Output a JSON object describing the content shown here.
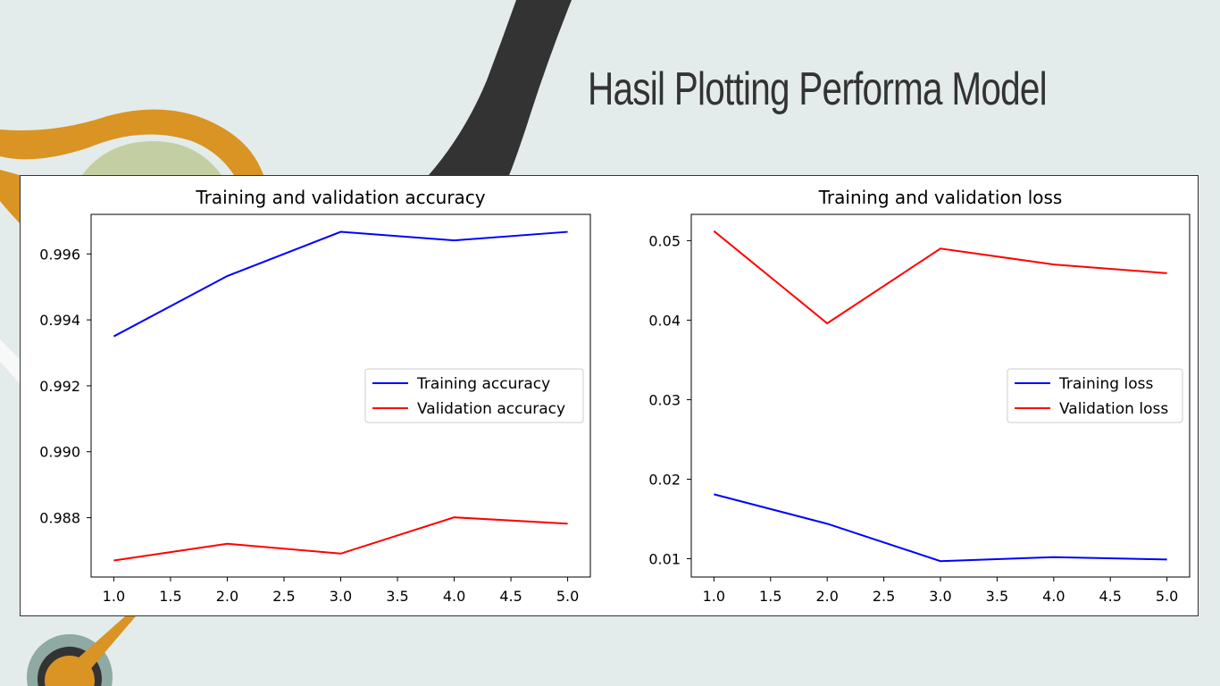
{
  "slide": {
    "title": "Hasil Plotting Performa Model"
  },
  "colors": {
    "background": "#e3ecea",
    "accent_orange": "#d99424",
    "accent_dark": "#333333",
    "accent_green": "#c3cfa2",
    "training": "#0000ff",
    "validation": "#ff0000"
  },
  "chart_data": [
    {
      "type": "line",
      "title": "Training and validation accuracy",
      "xlabel": "",
      "ylabel": "",
      "x": [
        1,
        2,
        3,
        4,
        5
      ],
      "xlim": [
        0.8,
        5.2
      ],
      "ylim": [
        0.9862,
        0.9972
      ],
      "xticks": [
        "1.0",
        "1.5",
        "2.0",
        "2.5",
        "3.0",
        "3.5",
        "4.0",
        "4.5",
        "5.0"
      ],
      "yticks": [
        "0.988",
        "0.990",
        "0.992",
        "0.994",
        "0.996"
      ],
      "legend_position": "center-right",
      "grid": false,
      "series": [
        {
          "name": "Training accuracy",
          "color": "#0000ff",
          "values": [
            0.9935,
            0.99533,
            0.99667,
            0.99641,
            0.99667
          ]
        },
        {
          "name": "Validation accuracy",
          "color": "#ff0000",
          "values": [
            0.9867,
            0.98721,
            0.98691,
            0.98801,
            0.98782
          ]
        }
      ]
    },
    {
      "type": "line",
      "title": "Training and validation loss",
      "xlabel": "",
      "ylabel": "",
      "x": [
        1,
        2,
        3,
        4,
        5
      ],
      "xlim": [
        0.8,
        5.2
      ],
      "ylim": [
        0.0077,
        0.0533
      ],
      "xticks": [
        "1.0",
        "1.5",
        "2.0",
        "2.5",
        "3.0",
        "3.5",
        "4.0",
        "4.5",
        "5.0"
      ],
      "yticks": [
        "0.01",
        "0.02",
        "0.03",
        "0.04",
        "0.05"
      ],
      "legend_position": "center-right",
      "grid": false,
      "series": [
        {
          "name": "Training loss",
          "color": "#0000ff",
          "values": [
            0.0181,
            0.0144,
            0.0097,
            0.0102,
            0.0099
          ]
        },
        {
          "name": "Validation loss",
          "color": "#ff0000",
          "values": [
            0.0512,
            0.0396,
            0.049,
            0.047,
            0.0459
          ]
        }
      ]
    }
  ]
}
